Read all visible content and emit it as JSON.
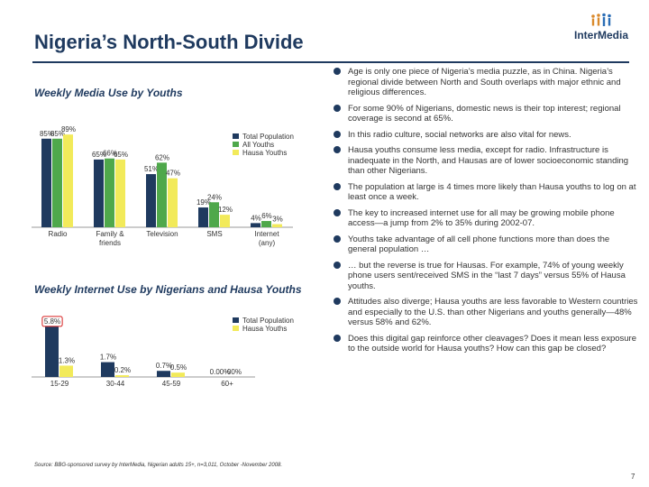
{
  "slide": {
    "title": "Nigeria’s North-South Divide",
    "logo_text": "InterMedia",
    "page_number": "7",
    "source": "Source: BBG-sponsored survey by InterMedia, Nigerian adults 15+, n=3,011, October -November 2008."
  },
  "colors": {
    "total": "#1f3a5f",
    "youths": "#4fa84b",
    "hausa": "#f2ea5a",
    "accent": "#1f3a5f",
    "highlight_border": "#d62020"
  },
  "bullets": [
    "Age is only one piece of Nigeria’s media puzzle, as in China. Nigeria’s regional divide between North and South overlaps with major ethnic and religious differences.",
    "For some 90% of Nigerians, domestic news is their top interest; regional coverage is second at 65%.",
    "In this radio culture, social networks are also vital for news.",
    "Hausa youths consume less media, except for radio. Infrastructure is inadequate in the North, and Hausas are of lower socioeconomic standing than other Nigerians.",
    "The population at large is 4 times more likely than Hausa youths to log on at least once a week.",
    "The key to increased internet use for all may be growing mobile phone access—a jump from 2% to 35% during 2002-07.",
    "Youths take advantage of all cell phone functions more than does the general population …",
    "… but the reverse is true for Hausas. For example, 74% of young weekly phone users sent/received SMS in the “last 7 days” versus 55% of Hausa youths.",
    "Attitudes also diverge; Hausa youths are less favorable to Western countries and especially to the U.S. than other Nigerians and youths generally—48% versus 58% and 62%.",
    "Does this digital gap reinforce other cleavages? Does it mean less exposure to the outside world for Hausa youths? How can this gap be closed?"
  ],
  "chart_data": [
    {
      "type": "bar",
      "title": "Weekly Media Use by Youths",
      "categories": [
        "Radio",
        "Family & friends",
        "Television",
        "SMS",
        "Internet (any)"
      ],
      "series": [
        {
          "name": "Total Population",
          "values": [
            85,
            65,
            51,
            19,
            4
          ],
          "labels": [
            "85%",
            "65%",
            "51%",
            "19%",
            "4%"
          ]
        },
        {
          "name": "All Youths",
          "values": [
            85,
            66,
            62,
            24,
            6
          ],
          "labels": [
            "85%",
            "66%",
            "62%",
            "24%",
            "6%"
          ]
        },
        {
          "name": "Hausa Youths",
          "values": [
            89,
            65,
            47,
            12,
            3
          ],
          "labels": [
            "89%",
            "65%",
            "47%",
            "12%",
            "3%"
          ]
        }
      ],
      "ylim": [
        0,
        90
      ],
      "legend": "top-right",
      "grid": false
    },
    {
      "type": "bar",
      "title": "Weekly Internet Use by Nigerians and Hausa Youths",
      "categories": [
        "15-29",
        "30-44",
        "45-59",
        "60+"
      ],
      "series": [
        {
          "name": "Total Population",
          "values": [
            5.8,
            1.7,
            0.7,
            0.0
          ],
          "labels": [
            "5.8%",
            "1.7%",
            "0.7%",
            "0.00%"
          ]
        },
        {
          "name": "Hausa Youths",
          "values": [
            1.3,
            0.2,
            0.5,
            0.0
          ],
          "labels": [
            "1.3%",
            "0.2%",
            "0.5%",
            "00%"
          ]
        }
      ],
      "ylim": [
        0,
        6
      ],
      "legend": "top-right",
      "grid": false
    }
  ]
}
